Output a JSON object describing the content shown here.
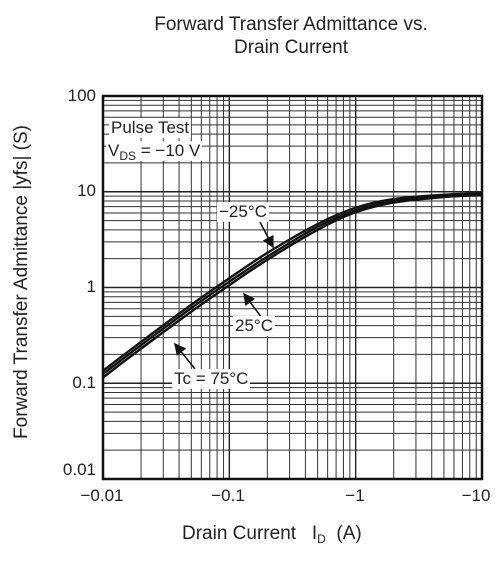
{
  "chart_data": {
    "type": "line",
    "title_line1": "Forward Transfer Admittance vs.",
    "title_line2": "Drain Current",
    "xlabel": {
      "main": "Drain Current",
      "symbol": "I",
      "sub": "D",
      "unit": "(A)"
    },
    "ylabel": "Forward Transfer Admittance   |yfs|   (S)",
    "x_scale": "log",
    "y_scale": "log",
    "x_ticks": [
      "−0.01",
      "−0.1",
      "−1",
      "−10"
    ],
    "y_ticks": [
      "100",
      "10",
      "1",
      "0.1",
      "0.01"
    ],
    "xlim": [
      -0.01,
      -10
    ],
    "ylim": [
      0.01,
      100
    ],
    "grid": true,
    "conditions": {
      "line1": "Pulse Test",
      "line2_main": "V",
      "line2_sub": "DS",
      "line2_rest": " = −10 V"
    },
    "series": [
      {
        "name": "−25°C",
        "x": [
          -0.01,
          -0.02,
          -0.05,
          -0.1,
          -0.2,
          -0.5,
          -1,
          -2,
          -5,
          -10
        ],
        "y": [
          0.135,
          0.27,
          0.66,
          1.25,
          2.3,
          4.6,
          6.8,
          8.4,
          9.3,
          9.6
        ]
      },
      {
        "name": "25°C",
        "x": [
          -0.01,
          -0.02,
          -0.05,
          -0.1,
          -0.2,
          -0.5,
          -1,
          -2,
          -5,
          -10
        ],
        "y": [
          0.125,
          0.25,
          0.61,
          1.15,
          2.1,
          4.3,
          6.4,
          8.0,
          9.0,
          9.4
        ]
      },
      {
        "name": "Tc = 75°C",
        "x": [
          -0.01,
          -0.02,
          -0.05,
          -0.1,
          -0.2,
          -0.5,
          -1,
          -2,
          -5,
          -10
        ],
        "y": [
          0.115,
          0.23,
          0.56,
          1.06,
          1.95,
          4.0,
          6.1,
          7.7,
          8.8,
          9.2
        ]
      }
    ]
  }
}
